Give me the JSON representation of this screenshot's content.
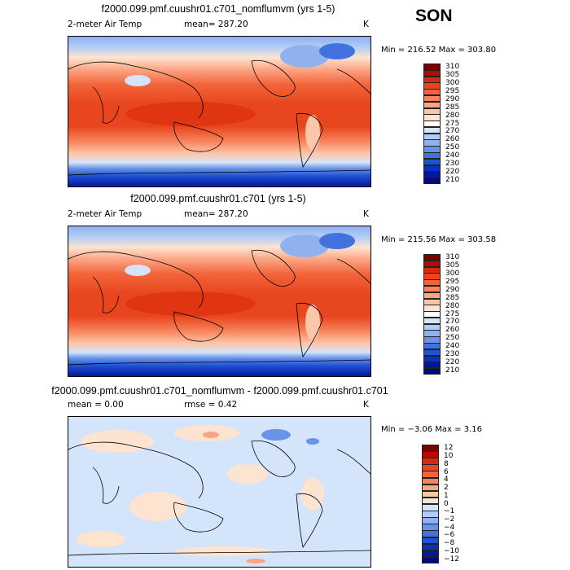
{
  "season": "SON",
  "panels": [
    {
      "title": "f2000.099.pmf.cuushr01.c701_nomflumvm (yrs 1-5)",
      "variable": "2-meter Air Temp",
      "stat_left": "mean= 287.20",
      "unit": "K",
      "minmax": "Min = 216.52  Max = 303.80",
      "colorbar": {
        "colors": [
          "#7a0000",
          "#b40a0a",
          "#d82a0a",
          "#e8461e",
          "#f2643a",
          "#f7845c",
          "#fba584",
          "#fdc6a8",
          "#fde4d0",
          "#ffffff",
          "#d4e4fa",
          "#b2cdf5",
          "#8fb2ef",
          "#6993e8",
          "#4272e0",
          "#2052d6",
          "#0a32c2",
          "#06189a",
          "#020b78"
        ],
        "ticks": [
          "310",
          "305",
          "300",
          "295",
          "290",
          "285",
          "280",
          "275",
          "270",
          "260",
          "250",
          "240",
          "230",
          "220",
          "210"
        ]
      }
    },
    {
      "title": "f2000.099.pmf.cuushr01.c701 (yrs 1-5)",
      "variable": "2-meter Air Temp",
      "stat_left": "mean= 287.20",
      "unit": "K",
      "minmax": "Min = 215.56  Max = 303.58",
      "colorbar": {
        "colors": [
          "#7a0000",
          "#b40a0a",
          "#d82a0a",
          "#e8461e",
          "#f2643a",
          "#f7845c",
          "#fba584",
          "#fdc6a8",
          "#fde4d0",
          "#ffffff",
          "#d4e4fa",
          "#b2cdf5",
          "#8fb2ef",
          "#6993e8",
          "#4272e0",
          "#2052d6",
          "#0a32c2",
          "#06189a",
          "#020b78"
        ],
        "ticks": [
          "310",
          "305",
          "300",
          "295",
          "290",
          "285",
          "280",
          "275",
          "270",
          "260",
          "250",
          "240",
          "230",
          "220",
          "210"
        ]
      }
    },
    {
      "title": "f2000.099.pmf.cuushr01.c701_nomflumvm - f2000.099.pmf.cuushr01.c701",
      "stat_left": "mean =    0.00",
      "stat_right": "rmse =    0.42",
      "unit": "K",
      "minmax": "Min =  −3.06  Max =    3.16",
      "colorbar": {
        "colors": [
          "#7a0000",
          "#b40a0a",
          "#d82a0a",
          "#e8461e",
          "#f2643a",
          "#f7845c",
          "#fba584",
          "#fdc6a8",
          "#fde4d0",
          "#d4e4fa",
          "#b2cdf5",
          "#8fb2ef",
          "#6993e8",
          "#4272e0",
          "#2052d6",
          "#0a32c2",
          "#06189a",
          "#020b78"
        ],
        "ticks": [
          "12",
          "10",
          "8",
          "6",
          "4",
          "2",
          "1",
          "0",
          "−1",
          "−2",
          "−4",
          "−6",
          "−8",
          "−10",
          "−12"
        ]
      }
    }
  ]
}
